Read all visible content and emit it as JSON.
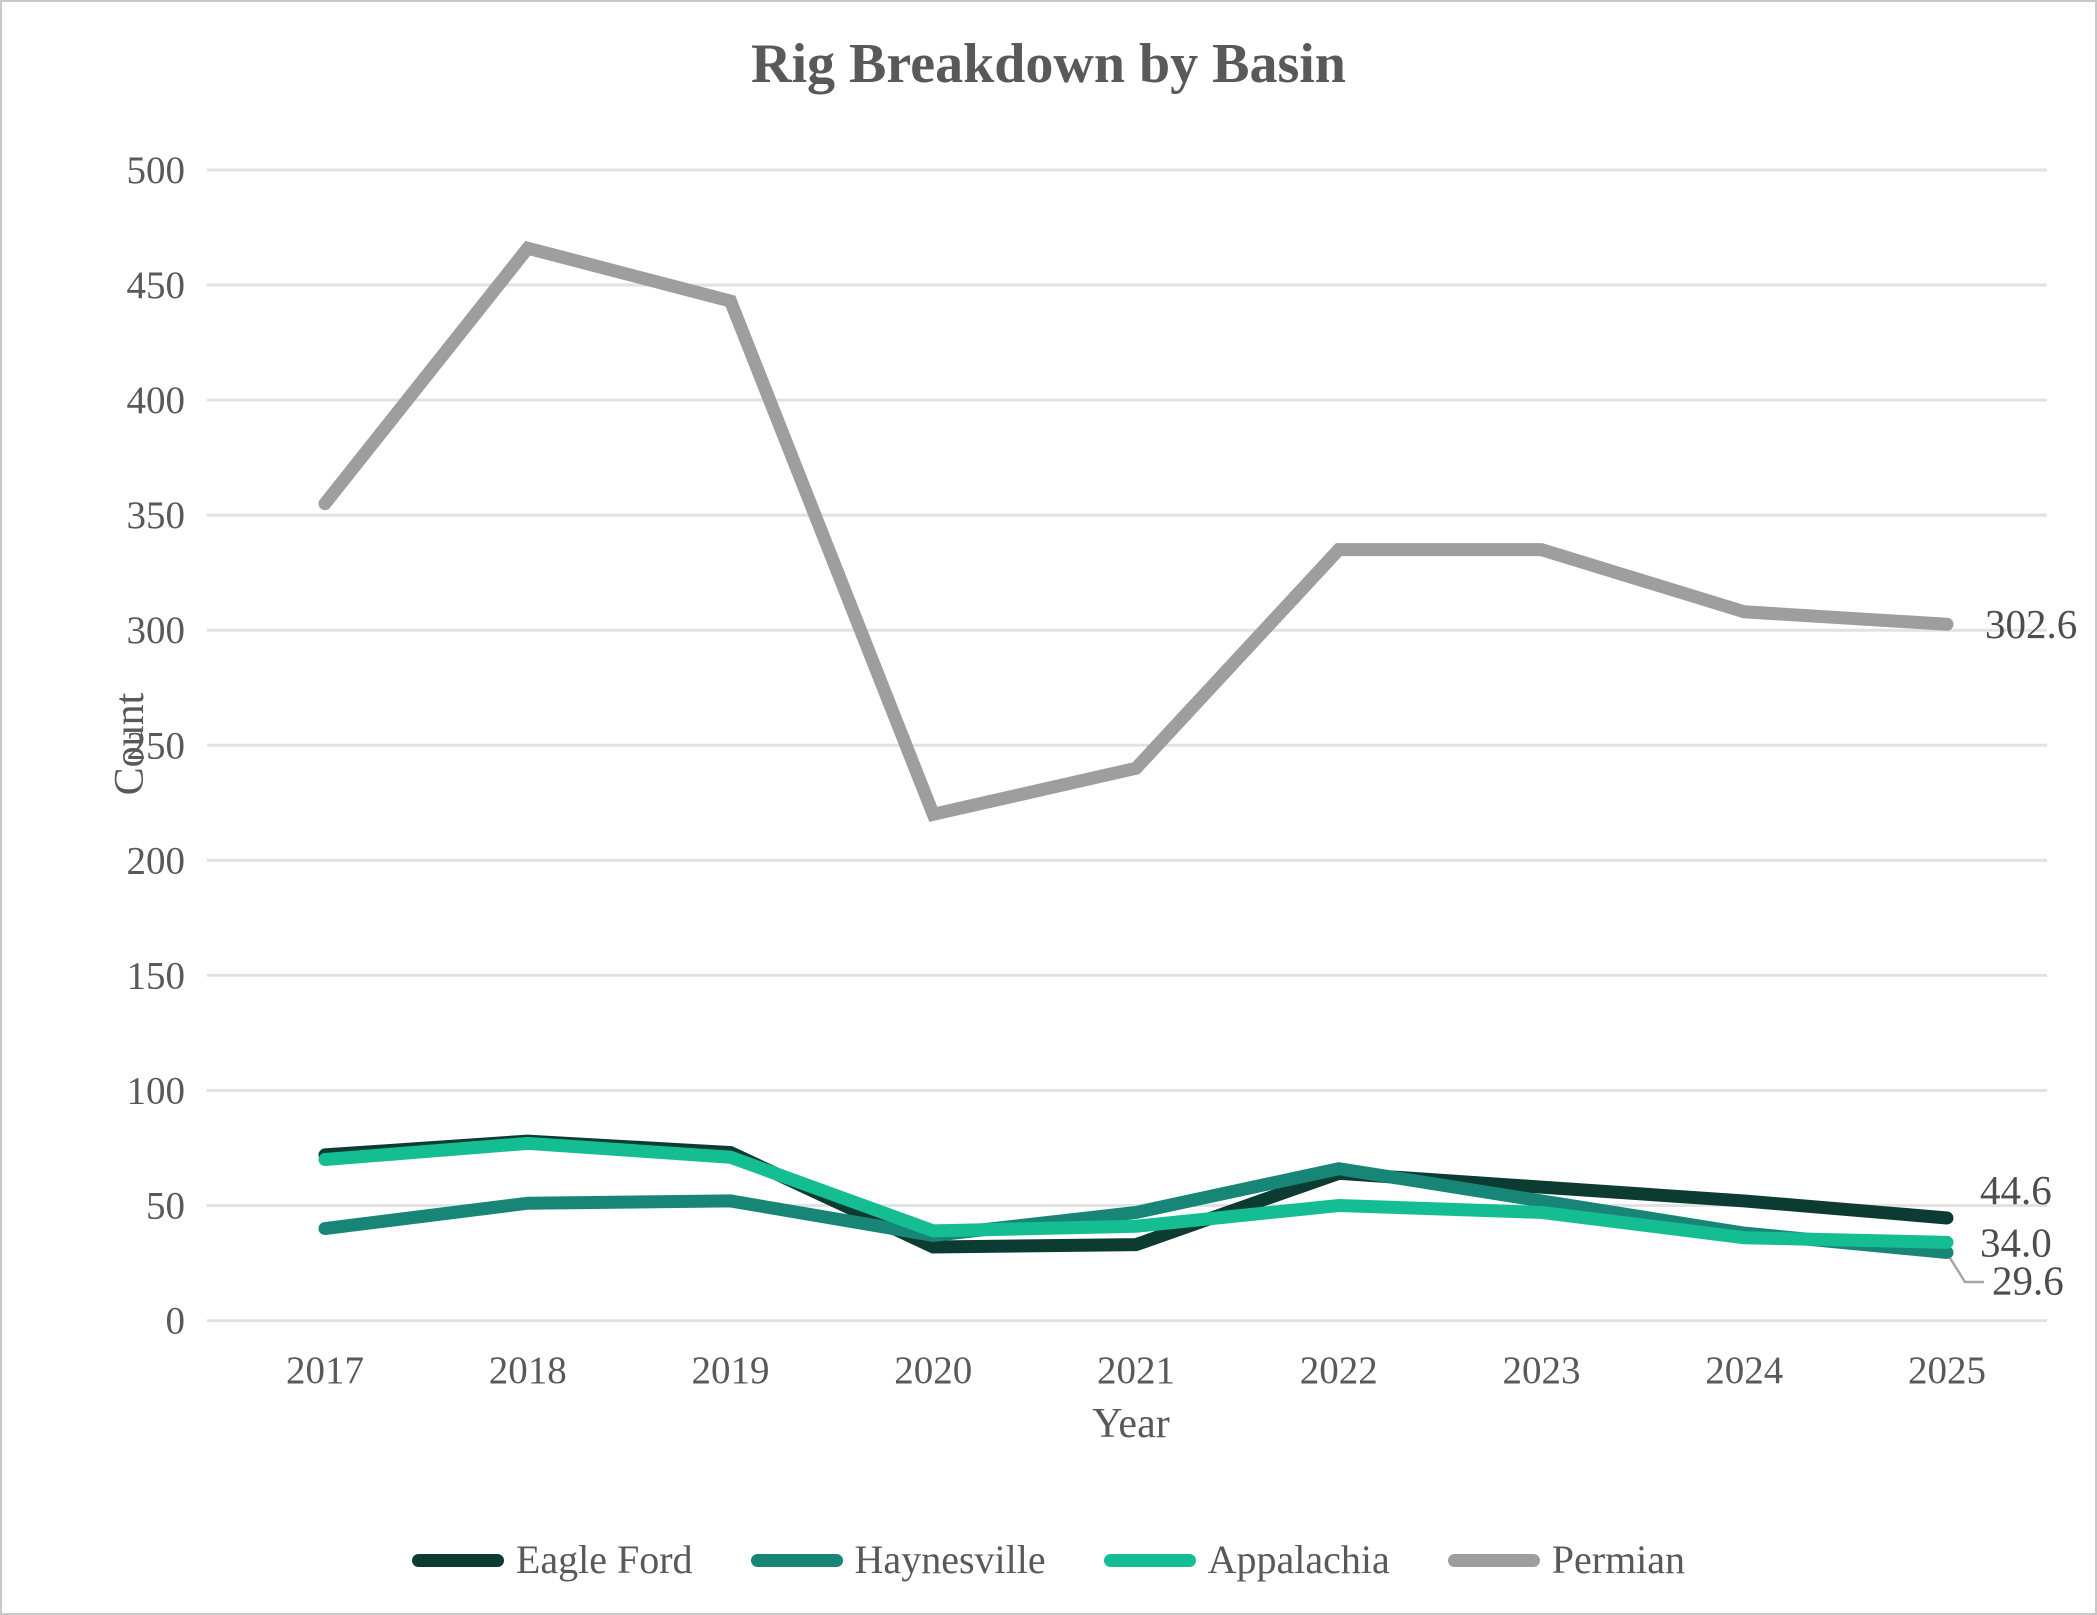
{
  "page": {
    "background": "#ffffff",
    "border_color": "#c8c8c8"
  },
  "chart_data": {
    "type": "line",
    "title": "Rig Breakdown by Basin",
    "xlabel": "Year",
    "ylabel": "Count",
    "categories": [
      "2017",
      "2018",
      "2019",
      "2020",
      "2021",
      "2022",
      "2023",
      "2024",
      "2025"
    ],
    "y_ticks": [
      "0",
      "50",
      "100",
      "150",
      "200",
      "250",
      "300",
      "350",
      "400",
      "450",
      "500"
    ],
    "y_tick_step": 50,
    "ylim": [
      0,
      500
    ],
    "grid": "horizontal",
    "legend_position": "bottom",
    "series": [
      {
        "name": "Eagle Ford",
        "color": "#0c3b31",
        "values": [
          72,
          78,
          73,
          32,
          33,
          64,
          58,
          52,
          44.6
        ],
        "end_label": "44.6"
      },
      {
        "name": "Haynesville",
        "color": "#178677",
        "values": [
          40,
          51,
          52,
          37,
          47,
          66,
          52,
          38,
          29.6
        ],
        "end_label": "29.6"
      },
      {
        "name": "Appalachia",
        "color": "#15be92",
        "values": [
          70,
          77,
          71,
          39,
          41,
          50,
          47,
          36,
          34.0
        ],
        "end_label": "34.0"
      },
      {
        "name": "Permian",
        "color": "#9e9e9e",
        "values": [
          355,
          466,
          443,
          220,
          240,
          335,
          335,
          308,
          302.6
        ],
        "end_label": "302.6"
      }
    ],
    "colors": {
      "grid": "#e2e2e2",
      "tick_text": "#595959",
      "end_label_text": "#4d4d4d",
      "leader": "#a6a6a6"
    }
  }
}
